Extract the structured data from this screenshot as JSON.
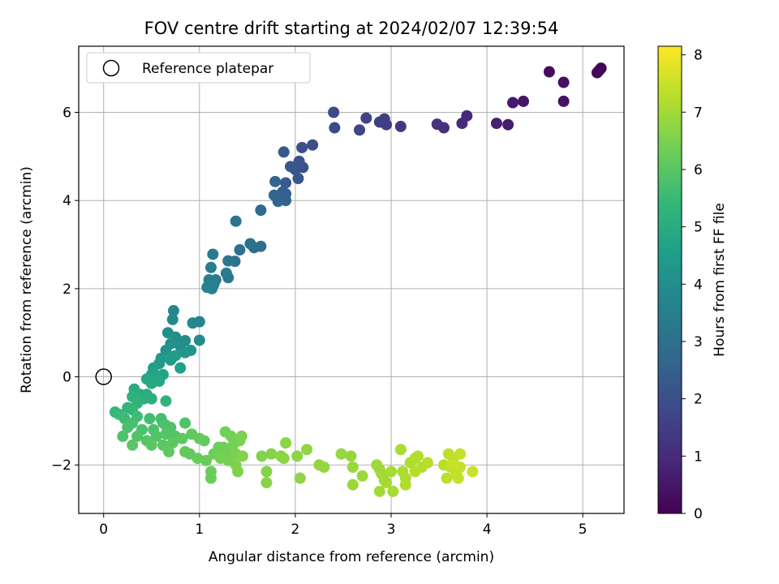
{
  "chart_data": {
    "type": "scatter",
    "title": "FOV centre drift starting at 2024/02/07 12:39:54",
    "xlabel": "Angular distance from reference (arcmin)",
    "ylabel": "Rotation from reference (arcmin)",
    "xlim": [
      -0.26,
      5.43
    ],
    "ylim": [
      -3.1,
      7.5
    ],
    "xticks": [
      0,
      1,
      2,
      3,
      4,
      5
    ],
    "yticks": [
      -2,
      0,
      2,
      4,
      6
    ],
    "xtick_labels": [
      "0",
      "1",
      "2",
      "3",
      "4",
      "5"
    ],
    "ytick_labels": [
      "−2",
      "0",
      "2",
      "4",
      "6"
    ],
    "grid": true,
    "legend": {
      "position": "upper-left",
      "label": "Reference platepar"
    },
    "reference_point": {
      "x": 0,
      "y": 0
    },
    "colorbar": {
      "label": "Hours from first FF file",
      "range": [
        0,
        8.15
      ],
      "ticks": [
        0,
        1,
        2,
        3,
        4,
        5,
        6,
        7,
        8
      ],
      "tick_labels": [
        "0",
        "1",
        "2",
        "3",
        "4",
        "5",
        "6",
        "7",
        "8"
      ],
      "colormap": "viridis"
    },
    "colormap_stops": [
      "#440154",
      "#482878",
      "#3e4989",
      "#31688e",
      "#26828e",
      "#1f9e89",
      "#35b779",
      "#6ece58",
      "#b5de2b",
      "#fde725"
    ],
    "points": [
      {
        "x": 5.19,
        "y": 7.0,
        "t": 0.05
      },
      {
        "x": 5.17,
        "y": 6.95,
        "t": 0.1
      },
      {
        "x": 5.15,
        "y": 6.9,
        "t": 0.15
      },
      {
        "x": 4.65,
        "y": 6.92,
        "t": 0.25
      },
      {
        "x": 4.8,
        "y": 6.68,
        "t": 0.3
      },
      {
        "x": 4.8,
        "y": 6.25,
        "t": 0.4
      },
      {
        "x": 4.38,
        "y": 6.25,
        "t": 0.5
      },
      {
        "x": 4.27,
        "y": 6.22,
        "t": 0.55
      },
      {
        "x": 4.22,
        "y": 5.72,
        "t": 0.65
      },
      {
        "x": 4.1,
        "y": 5.75,
        "t": 0.75
      },
      {
        "x": 3.79,
        "y": 5.92,
        "t": 0.9
      },
      {
        "x": 3.74,
        "y": 5.75,
        "t": 1.0
      },
      {
        "x": 3.55,
        "y": 5.65,
        "t": 1.1
      },
      {
        "x": 3.48,
        "y": 5.73,
        "t": 1.2
      },
      {
        "x": 3.1,
        "y": 5.68,
        "t": 1.35
      },
      {
        "x": 2.93,
        "y": 5.85,
        "t": 1.45
      },
      {
        "x": 2.95,
        "y": 5.72,
        "t": 1.5
      },
      {
        "x": 2.88,
        "y": 5.78,
        "t": 1.55
      },
      {
        "x": 2.74,
        "y": 5.87,
        "t": 1.65
      },
      {
        "x": 2.67,
        "y": 5.6,
        "t": 1.7
      },
      {
        "x": 2.4,
        "y": 6.0,
        "t": 1.8
      },
      {
        "x": 2.41,
        "y": 5.65,
        "t": 1.85
      },
      {
        "x": 2.18,
        "y": 5.26,
        "t": 1.95
      },
      {
        "x": 2.07,
        "y": 5.2,
        "t": 2.0
      },
      {
        "x": 2.08,
        "y": 4.75,
        "t": 2.05
      },
      {
        "x": 2.04,
        "y": 4.89,
        "t": 2.1
      },
      {
        "x": 2.0,
        "y": 4.7,
        "t": 2.15
      },
      {
        "x": 2.03,
        "y": 4.5,
        "t": 2.2
      },
      {
        "x": 1.95,
        "y": 4.77,
        "t": 2.25
      },
      {
        "x": 1.88,
        "y": 5.1,
        "t": 2.3
      },
      {
        "x": 1.9,
        "y": 4.4,
        "t": 2.35
      },
      {
        "x": 1.9,
        "y": 4.15,
        "t": 2.4
      },
      {
        "x": 1.87,
        "y": 4.2,
        "t": 2.45
      },
      {
        "x": 1.85,
        "y": 4.05,
        "t": 2.5
      },
      {
        "x": 1.9,
        "y": 4.0,
        "t": 2.55
      },
      {
        "x": 1.82,
        "y": 3.98,
        "t": 2.6
      },
      {
        "x": 1.79,
        "y": 4.43,
        "t": 2.65
      },
      {
        "x": 1.78,
        "y": 4.12,
        "t": 2.7
      },
      {
        "x": 1.64,
        "y": 3.78,
        "t": 2.8
      },
      {
        "x": 1.64,
        "y": 2.96,
        "t": 2.9
      },
      {
        "x": 1.57,
        "y": 2.93,
        "t": 2.95
      },
      {
        "x": 1.53,
        "y": 3.02,
        "t": 3.0
      },
      {
        "x": 1.42,
        "y": 2.88,
        "t": 3.05
      },
      {
        "x": 1.38,
        "y": 3.53,
        "t": 3.1
      },
      {
        "x": 1.37,
        "y": 2.62,
        "t": 3.15
      },
      {
        "x": 1.3,
        "y": 2.63,
        "t": 3.2
      },
      {
        "x": 1.3,
        "y": 2.25,
        "t": 3.25
      },
      {
        "x": 1.28,
        "y": 2.35,
        "t": 3.3
      },
      {
        "x": 1.14,
        "y": 2.78,
        "t": 3.35
      },
      {
        "x": 1.12,
        "y": 2.48,
        "t": 3.4
      },
      {
        "x": 1.17,
        "y": 2.2,
        "t": 3.45
      },
      {
        "x": 1.1,
        "y": 2.2,
        "t": 3.5
      },
      {
        "x": 1.15,
        "y": 2.1,
        "t": 3.55
      },
      {
        "x": 1.13,
        "y": 2.0,
        "t": 3.6
      },
      {
        "x": 1.08,
        "y": 2.03,
        "t": 3.65
      },
      {
        "x": 1.0,
        "y": 1.25,
        "t": 3.7
      },
      {
        "x": 0.93,
        "y": 1.22,
        "t": 3.75
      },
      {
        "x": 0.73,
        "y": 1.5,
        "t": 3.8
      },
      {
        "x": 0.72,
        "y": 1.3,
        "t": 3.85
      },
      {
        "x": 1.0,
        "y": 0.83,
        "t": 3.9
      },
      {
        "x": 0.85,
        "y": 0.82,
        "t": 3.95
      },
      {
        "x": 0.8,
        "y": 0.7,
        "t": 4.0
      },
      {
        "x": 0.75,
        "y": 0.9,
        "t": 4.05
      },
      {
        "x": 0.67,
        "y": 1.0,
        "t": 4.1
      },
      {
        "x": 0.7,
        "y": 0.75,
        "t": 4.15
      },
      {
        "x": 0.65,
        "y": 0.6,
        "t": 4.2
      },
      {
        "x": 0.91,
        "y": 0.6,
        "t": 4.25
      },
      {
        "x": 0.85,
        "y": 0.55,
        "t": 4.3
      },
      {
        "x": 0.6,
        "y": 0.42,
        "t": 4.35
      },
      {
        "x": 0.58,
        "y": 0.3,
        "t": 4.4
      },
      {
        "x": 0.75,
        "y": 0.48,
        "t": 4.45
      },
      {
        "x": 0.7,
        "y": 0.38,
        "t": 4.5
      },
      {
        "x": 0.8,
        "y": 0.2,
        "t": 4.55
      },
      {
        "x": 0.52,
        "y": 0.2,
        "t": 4.6
      },
      {
        "x": 0.5,
        "y": 0.05,
        "t": 4.65
      },
      {
        "x": 0.62,
        "y": 0.05,
        "t": 4.7
      },
      {
        "x": 0.55,
        "y": 0.0,
        "t": 4.75
      },
      {
        "x": 0.45,
        "y": -0.05,
        "t": 4.8
      },
      {
        "x": 0.58,
        "y": -0.1,
        "t": 4.85
      },
      {
        "x": 0.5,
        "y": -0.15,
        "t": 4.9
      },
      {
        "x": 0.32,
        "y": -0.28,
        "t": 4.95
      },
      {
        "x": 0.45,
        "y": -0.4,
        "t": 5.0
      },
      {
        "x": 0.38,
        "y": -0.4,
        "t": 5.05
      },
      {
        "x": 0.42,
        "y": -0.5,
        "t": 5.1
      },
      {
        "x": 0.5,
        "y": -0.5,
        "t": 5.15
      },
      {
        "x": 0.3,
        "y": -0.45,
        "t": 5.2
      },
      {
        "x": 0.35,
        "y": -0.6,
        "t": 5.25
      },
      {
        "x": 0.65,
        "y": -0.55,
        "t": 5.3
      },
      {
        "x": 0.25,
        "y": -0.7,
        "t": 5.35
      },
      {
        "x": 0.3,
        "y": -0.75,
        "t": 5.4
      },
      {
        "x": 0.12,
        "y": -0.8,
        "t": 5.45
      },
      {
        "x": 0.16,
        "y": -0.85,
        "t": 5.5
      },
      {
        "x": 0.22,
        "y": -0.95,
        "t": 5.55
      },
      {
        "x": 0.35,
        "y": -0.9,
        "t": 5.6
      },
      {
        "x": 0.48,
        "y": -0.95,
        "t": 5.65
      },
      {
        "x": 0.6,
        "y": -0.95,
        "t": 5.7
      },
      {
        "x": 0.62,
        "y": -1.05,
        "t": 5.72
      },
      {
        "x": 0.3,
        "y": -1.05,
        "t": 5.74
      },
      {
        "x": 0.25,
        "y": -1.15,
        "t": 5.76
      },
      {
        "x": 0.4,
        "y": -1.2,
        "t": 5.78
      },
      {
        "x": 0.52,
        "y": -1.2,
        "t": 5.8
      },
      {
        "x": 0.65,
        "y": -1.1,
        "t": 5.82
      },
      {
        "x": 0.7,
        "y": -1.15,
        "t": 5.84
      },
      {
        "x": 0.85,
        "y": -1.05,
        "t": 5.86
      },
      {
        "x": 0.2,
        "y": -1.35,
        "t": 5.88
      },
      {
        "x": 0.35,
        "y": -1.35,
        "t": 5.9
      },
      {
        "x": 0.55,
        "y": -1.35,
        "t": 5.92
      },
      {
        "x": 0.65,
        "y": -1.3,
        "t": 5.94
      },
      {
        "x": 0.75,
        "y": -1.35,
        "t": 5.96
      },
      {
        "x": 0.45,
        "y": -1.45,
        "t": 5.98
      },
      {
        "x": 0.3,
        "y": -1.55,
        "t": 6.0
      },
      {
        "x": 0.5,
        "y": -1.55,
        "t": 6.02
      },
      {
        "x": 0.62,
        "y": -1.55,
        "t": 6.04
      },
      {
        "x": 0.72,
        "y": -1.5,
        "t": 6.06
      },
      {
        "x": 0.82,
        "y": -1.4,
        "t": 6.08
      },
      {
        "x": 0.92,
        "y": -1.3,
        "t": 6.1
      },
      {
        "x": 0.68,
        "y": -1.7,
        "t": 6.12
      },
      {
        "x": 0.85,
        "y": -1.7,
        "t": 6.14
      },
      {
        "x": 0.9,
        "y": -1.75,
        "t": 6.16
      },
      {
        "x": 1.0,
        "y": -1.4,
        "t": 6.18
      },
      {
        "x": 1.05,
        "y": -1.45,
        "t": 6.2
      },
      {
        "x": 0.98,
        "y": -1.85,
        "t": 6.22
      },
      {
        "x": 1.07,
        "y": -1.9,
        "t": 6.24
      },
      {
        "x": 1.12,
        "y": -2.15,
        "t": 6.26
      },
      {
        "x": 1.12,
        "y": -2.3,
        "t": 6.28
      },
      {
        "x": 1.15,
        "y": -1.75,
        "t": 6.3
      },
      {
        "x": 1.2,
        "y": -1.6,
        "t": 6.32
      },
      {
        "x": 1.25,
        "y": -1.6,
        "t": 6.34
      },
      {
        "x": 1.3,
        "y": -1.7,
        "t": 6.36
      },
      {
        "x": 1.27,
        "y": -1.25,
        "t": 6.38
      },
      {
        "x": 1.33,
        "y": -1.35,
        "t": 6.4
      },
      {
        "x": 1.35,
        "y": -1.55,
        "t": 6.42
      },
      {
        "x": 1.22,
        "y": -1.85,
        "t": 6.44
      },
      {
        "x": 1.3,
        "y": -1.9,
        "t": 6.46
      },
      {
        "x": 1.38,
        "y": -1.75,
        "t": 6.48
      },
      {
        "x": 1.42,
        "y": -1.45,
        "t": 6.5
      },
      {
        "x": 1.44,
        "y": -1.35,
        "t": 6.52
      },
      {
        "x": 1.38,
        "y": -2.0,
        "t": 6.54
      },
      {
        "x": 1.4,
        "y": -2.15,
        "t": 6.56
      },
      {
        "x": 1.45,
        "y": -1.8,
        "t": 6.58
      },
      {
        "x": 1.65,
        "y": -1.8,
        "t": 6.6
      },
      {
        "x": 1.75,
        "y": -1.75,
        "t": 6.62
      },
      {
        "x": 1.7,
        "y": -2.15,
        "t": 6.64
      },
      {
        "x": 1.7,
        "y": -2.4,
        "t": 6.66
      },
      {
        "x": 1.85,
        "y": -1.8,
        "t": 6.68
      },
      {
        "x": 1.88,
        "y": -1.85,
        "t": 6.7
      },
      {
        "x": 1.9,
        "y": -1.5,
        "t": 6.72
      },
      {
        "x": 2.02,
        "y": -1.8,
        "t": 6.74
      },
      {
        "x": 2.05,
        "y": -2.3,
        "t": 6.76
      },
      {
        "x": 2.12,
        "y": -1.65,
        "t": 6.78
      },
      {
        "x": 2.25,
        "y": -2.0,
        "t": 6.8
      },
      {
        "x": 2.3,
        "y": -2.05,
        "t": 6.82
      },
      {
        "x": 2.48,
        "y": -1.75,
        "t": 6.84
      },
      {
        "x": 2.58,
        "y": -1.8,
        "t": 6.86
      },
      {
        "x": 2.6,
        "y": -2.05,
        "t": 6.88
      },
      {
        "x": 2.6,
        "y": -2.45,
        "t": 6.9
      },
      {
        "x": 2.7,
        "y": -2.25,
        "t": 6.92
      },
      {
        "x": 2.85,
        "y": -2.0,
        "t": 6.94
      },
      {
        "x": 2.88,
        "y": -2.1,
        "t": 6.96
      },
      {
        "x": 2.9,
        "y": -2.2,
        "t": 6.98
      },
      {
        "x": 2.88,
        "y": -2.6,
        "t": 7.0
      },
      {
        "x": 2.93,
        "y": -2.35,
        "t": 7.02
      },
      {
        "x": 2.95,
        "y": -2.4,
        "t": 7.04
      },
      {
        "x": 3.0,
        "y": -2.15,
        "t": 7.06
      },
      {
        "x": 3.02,
        "y": -2.6,
        "t": 7.08
      },
      {
        "x": 3.1,
        "y": -1.65,
        "t": 7.1
      },
      {
        "x": 3.12,
        "y": -2.15,
        "t": 7.12
      },
      {
        "x": 3.15,
        "y": -2.3,
        "t": 7.14
      },
      {
        "x": 3.15,
        "y": -2.45,
        "t": 7.16
      },
      {
        "x": 3.2,
        "y": -1.95,
        "t": 7.18
      },
      {
        "x": 3.25,
        "y": -1.85,
        "t": 7.2
      },
      {
        "x": 3.28,
        "y": -1.8,
        "t": 7.22
      },
      {
        "x": 3.25,
        "y": -2.15,
        "t": 7.24
      },
      {
        "x": 3.32,
        "y": -2.05,
        "t": 7.26
      },
      {
        "x": 3.38,
        "y": -1.95,
        "t": 7.28
      },
      {
        "x": 3.55,
        "y": -2.0,
        "t": 7.3
      },
      {
        "x": 3.58,
        "y": -2.3,
        "t": 7.32
      },
      {
        "x": 3.6,
        "y": -1.75,
        "t": 7.34
      },
      {
        "x": 3.62,
        "y": -2.05,
        "t": 7.36
      },
      {
        "x": 3.65,
        "y": -1.85,
        "t": 7.38
      },
      {
        "x": 3.68,
        "y": -2.2,
        "t": 7.4
      },
      {
        "x": 3.7,
        "y": -2.3,
        "t": 7.42
      },
      {
        "x": 3.72,
        "y": -1.75,
        "t": 7.44
      },
      {
        "x": 3.72,
        "y": -2.05,
        "t": 7.46
      },
      {
        "x": 3.65,
        "y": -2.0,
        "t": 7.48
      },
      {
        "x": 3.85,
        "y": -2.15,
        "t": 7.5
      }
    ]
  }
}
